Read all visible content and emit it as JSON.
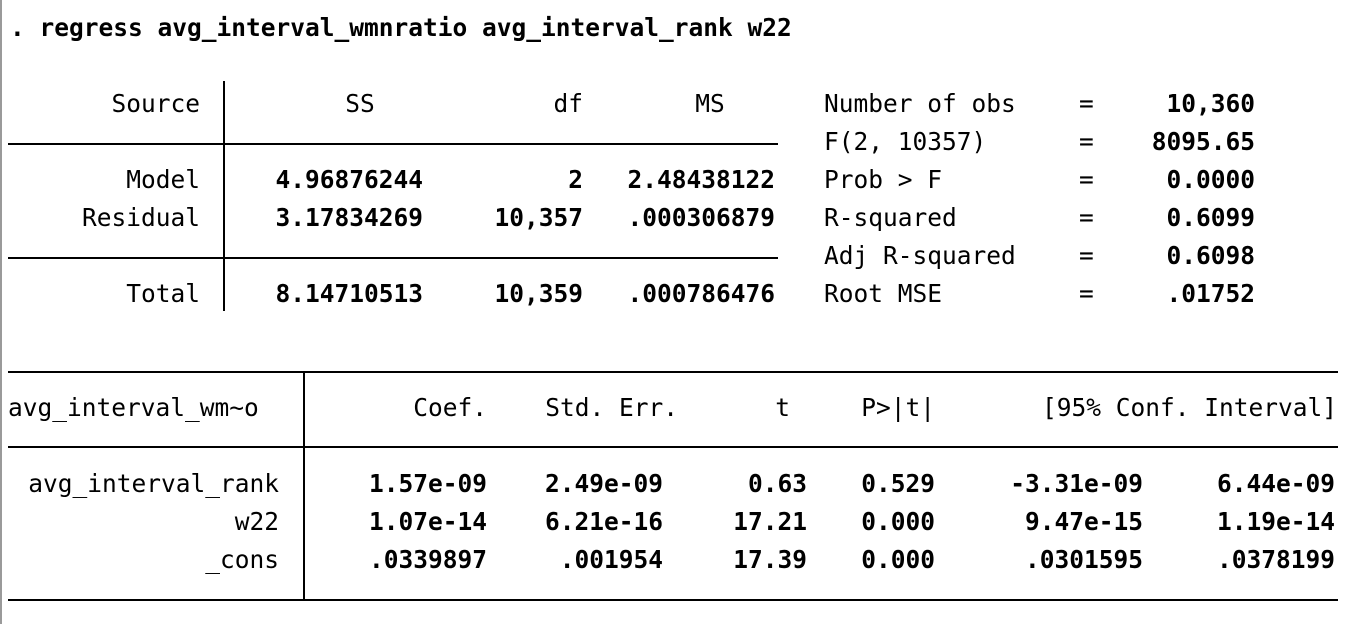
{
  "command": ". regress avg_interval_wmnratio avg_interval_rank w22",
  "anova": {
    "headers": {
      "source": "Source",
      "ss": "SS",
      "df": "df",
      "ms": "MS"
    },
    "rows": [
      {
        "source": "Model",
        "ss": "4.96876244",
        "df": "2",
        "ms": "2.48438122"
      },
      {
        "source": "Residual",
        "ss": "3.17834269",
        "df": "10,357",
        "ms": ".000306879"
      }
    ],
    "total": {
      "source": "Total",
      "ss": "8.14710513",
      "df": "10,359",
      "ms": ".000786476"
    }
  },
  "stats": [
    {
      "label": "Number of obs",
      "eq": "=",
      "value": "10,360"
    },
    {
      "label": "F(2, 10357)",
      "eq": "=",
      "value": "8095.65"
    },
    {
      "label": "Prob > F",
      "eq": "=",
      "value": "0.0000"
    },
    {
      "label": "R-squared",
      "eq": "=",
      "value": "0.6099"
    },
    {
      "label": "Adj R-squared",
      "eq": "=",
      "value": "0.6098"
    },
    {
      "label": "Root MSE",
      "eq": "=",
      "value": ".01752"
    }
  ],
  "coef_table": {
    "depvar": "avg_interval_wm~o",
    "headers": {
      "coef": "Coef.",
      "se": "Std. Err.",
      "t": "t",
      "p": "P>|t|",
      "ci": "[95% Conf. Interval]"
    },
    "rows": [
      {
        "var": "avg_interval_rank",
        "coef": "1.57e-09",
        "se": "2.49e-09",
        "t": "0.63",
        "p": "0.529",
        "lo": "-3.31e-09",
        "hi": "6.44e-09"
      },
      {
        "var": "w22",
        "coef": "1.07e-14",
        "se": "6.21e-16",
        "t": "17.21",
        "p": "0.000",
        "lo": "9.47e-15",
        "hi": "1.19e-14"
      },
      {
        "var": "_cons",
        "coef": ".0339897",
        "se": ".001954",
        "t": "17.39",
        "p": "0.000",
        "lo": ".0301595",
        "hi": ".0378199"
      }
    ]
  }
}
